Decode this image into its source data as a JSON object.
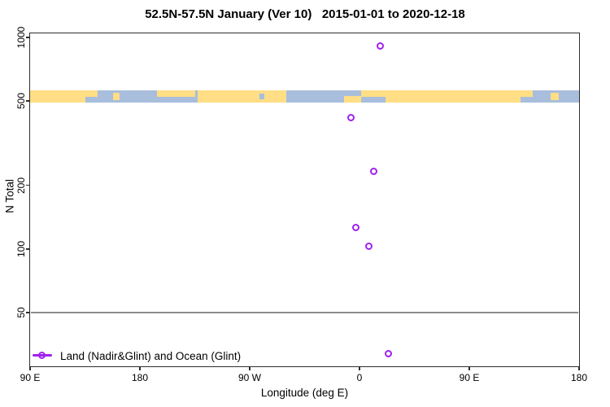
{
  "title": "52.5N-57.5N January (Ver 10)   2015-01-01 to 2020-12-18",
  "chart_data": {
    "type": "scatter",
    "title": "52.5N-57.5N January (Ver 10)   2015-01-01 to 2020-12-18",
    "xlabel": "Longitude (deg E)",
    "ylabel": "N Total",
    "x_scale": {
      "unit": "degrees east, unwrapped eastward from 90E",
      "domain": [
        90,
        540
      ]
    },
    "x_ticks": [
      {
        "label": "90 E",
        "value": 90
      },
      {
        "label": "180",
        "value": 180
      },
      {
        "label": "90 W",
        "value": 270
      },
      {
        "label": "0",
        "value": 360
      },
      {
        "label": "90 E",
        "value": 450
      },
      {
        "label": "180",
        "value": 540
      }
    ],
    "y_scale": "log10",
    "y_domain": [
      28,
      1046
    ],
    "y_ticks": [
      {
        "label": "1000",
        "value": 1000
      },
      {
        "label": "500",
        "value": 500
      },
      {
        "label": "200",
        "value": 200
      },
      {
        "label": "100",
        "value": 100
      },
      {
        "label": "50",
        "value": 50
      }
    ],
    "grid": "off",
    "reference_line": {
      "value": 50
    },
    "points": [
      {
        "lon_deg_e": 17.3,
        "n": 913
      },
      {
        "lon_deg_e": -7.3,
        "n": 416
      },
      {
        "lon_deg_e": 11.5,
        "n": 232
      },
      {
        "lon_deg_e": -2.7,
        "n": 126
      },
      {
        "lon_deg_e": 7.5,
        "n": 103
      },
      {
        "lon_deg_e": 23.5,
        "n": 32
      }
    ],
    "legend": [
      {
        "label": "Land (Nadir&Glint) and Ocean (Glint)",
        "marker": "open-circle-on-line",
        "position": "bottom-left"
      }
    ],
    "map_strip": {
      "description": "land/ocean coastline band for latitude zone 52.5N-57.5N drawn across all longitudes near N=500",
      "n_top": 560,
      "n_bottom": 492,
      "land_segments": [
        {
          "from": 90,
          "to": 135,
          "extent": "full"
        },
        {
          "from": 135,
          "to": 145,
          "extent": "top"
        },
        {
          "from": 158,
          "to": 163,
          "extent": "mid"
        },
        {
          "from": 194,
          "to": 225,
          "extent": "top"
        },
        {
          "from": 227,
          "to": 300,
          "extent": "full"
        },
        {
          "from": 347,
          "to": 361,
          "extent": "bottom"
        },
        {
          "from": 361,
          "to": 381,
          "extent": "top"
        },
        {
          "from": 381,
          "to": 492,
          "extent": "full"
        },
        {
          "from": 492,
          "to": 502,
          "extent": "top"
        },
        {
          "from": 516.5,
          "to": 523.5,
          "extent": "mid"
        }
      ],
      "water_notches": [
        {
          "from": 278,
          "to": 282
        }
      ]
    },
    "colors": {
      "points": "#A020F0",
      "land": "#FFDE85",
      "ocean": "#A8BEDC",
      "reference_line": "#8C8C8C",
      "frame": "#2E2E2E",
      "text": "#000000"
    }
  }
}
